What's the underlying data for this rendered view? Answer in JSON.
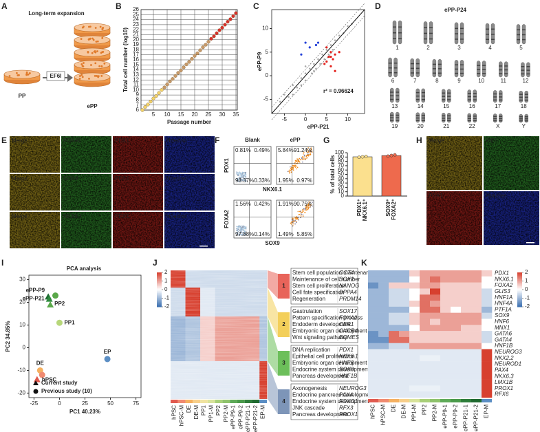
{
  "letters": [
    "A",
    "B",
    "C",
    "D",
    "E",
    "F",
    "G",
    "H",
    "I",
    "J",
    "K"
  ],
  "a": {
    "title": "Long-term expansion",
    "left": "PP",
    "arrow": "EF6I",
    "right": "ePP"
  },
  "b": {
    "type": "line",
    "xlabel": "Passage number",
    "ylabel": "Total cell number (log10)",
    "xlim": [
      0.5,
      35.5
    ],
    "ylim": [
      6,
      26
    ],
    "xticks": [
      5,
      10,
      15,
      20,
      25,
      30,
      35
    ],
    "yticks": [
      6,
      7,
      8,
      9,
      10,
      11,
      12,
      13,
      14,
      15,
      16,
      17,
      18,
      19,
      20,
      21,
      22,
      23,
      24,
      25,
      26
    ],
    "grid": true,
    "series": [
      {
        "color": "#f3d46a",
        "x": [
          1,
          2,
          3,
          4,
          5,
          6,
          7,
          8
        ],
        "values": [
          6.0,
          6.6,
          7.1,
          7.7,
          8.3,
          8.8,
          9.4,
          10.0
        ]
      },
      {
        "color": "#c89a6a",
        "x": [
          9,
          10,
          11,
          12,
          13,
          14,
          15,
          16,
          17,
          18,
          19,
          20,
          21,
          22,
          23,
          24,
          25
        ],
        "values": [
          10.5,
          11.1,
          11.7,
          12.2,
          12.8,
          13.4,
          13.9,
          14.5,
          15.1,
          15.6,
          16.2,
          16.8,
          17.3,
          17.9,
          18.5,
          19.0,
          19.6
        ]
      },
      {
        "color": "#d9302a",
        "x": [
          26,
          27,
          28,
          29,
          30,
          31,
          32,
          33,
          34,
          35
        ],
        "values": [
          20.2,
          20.7,
          21.3,
          21.9,
          22.4,
          23.0,
          23.6,
          24.1,
          24.7,
          25.3
        ]
      }
    ]
  },
  "c": {
    "type": "scatter",
    "xlabel": "ePP-P21",
    "ylabel": "ePP-P9",
    "annotation": "r² = 0.96624",
    "xlim": [
      -8,
      14
    ],
    "ylim": [
      -8,
      14
    ],
    "xticks": [
      -5,
      0,
      5,
      10
    ],
    "yticks": [
      -5,
      0,
      5,
      10
    ],
    "series": [
      {
        "color": "#a9a9a9",
        "x": [
          -6,
          -5,
          -4,
          -3,
          -2,
          -1,
          0,
          0,
          1,
          1.5,
          2,
          2.5,
          3,
          3.5,
          4,
          4.5,
          5,
          5.5,
          6,
          6.5,
          7,
          -3,
          -1,
          2,
          0,
          8,
          9,
          10,
          11
        ],
        "values": [
          -5.5,
          -4,
          -4.5,
          -2,
          -2.5,
          -0.5,
          0.5,
          -1,
          1.5,
          0.5,
          2.5,
          1.5,
          3.5,
          2.5,
          4.5,
          3.5,
          5.5,
          4.5,
          6.5,
          5.5,
          7.5,
          -4,
          -2,
          1,
          2,
          8.5,
          9,
          10.5,
          11
        ]
      },
      {
        "color": "#e3211c",
        "x": [
          5,
          5.5,
          6,
          6.5,
          7,
          5,
          6,
          8,
          7,
          4.5,
          6
        ],
        "values": [
          3,
          4,
          2,
          3.5,
          4.5,
          6,
          5,
          5,
          1,
          2.5,
          4
        ]
      },
      {
        "color": "#2340d8",
        "x": [
          1,
          0,
          2.5,
          -1,
          3
        ],
        "values": [
          6,
          7,
          6.5,
          4.5,
          7
        ]
      }
    ]
  },
  "d": {
    "title": "ePP-P24",
    "rows": [
      [
        "1",
        "2",
        "3",
        "4",
        "5"
      ],
      [
        "6",
        "7",
        "8",
        "9",
        "10",
        "11",
        "12"
      ],
      [
        "13",
        "14",
        "15",
        "16",
        "17",
        "18"
      ],
      [
        "19",
        "20",
        "21",
        "22",
        "X",
        "Y"
      ]
    ]
  },
  "e": {
    "rows": [
      [
        "Merge",
        "FOXA2",
        "PDX1",
        "Hoechst"
      ],
      [
        "Merge",
        "SOX9",
        "PDX1",
        "Hoechst"
      ],
      [
        "Merge",
        "NKX6.1",
        "PDX1",
        "Hoechst"
      ]
    ]
  },
  "f": {
    "columns": [
      "Blank",
      "ePP"
    ],
    "rows": [
      {
        "y": "PDX1",
        "x": "NKX6.1",
        "blank": [
          "0.81%",
          "0.49%",
          "98.37%",
          "0.33%"
        ],
        "epp": [
          "5.84%",
          "91.24%",
          "1.95%",
          "0.97%"
        ]
      },
      {
        "y": "FOXA2",
        "x": "SOX9",
        "blank": [
          "1.56%",
          "0.42%",
          "97.88%",
          "0.14%"
        ],
        "epp": [
          "1.91%",
          "90.75%",
          "1.49%",
          "5.85%"
        ]
      }
    ]
  },
  "g": {
    "type": "bar",
    "ylabel": "% of total cells",
    "ylim": [
      0,
      100
    ],
    "yticks": [
      0,
      10,
      20,
      30,
      40,
      50,
      60,
      70,
      80,
      90,
      100
    ],
    "categories": [
      [
        "PDX1⁺",
        "NKX6.1⁺"
      ],
      [
        "SOX9⁺",
        "FOXA2⁺"
      ]
    ],
    "values": [
      90.5,
      93.5
    ],
    "points": [
      [
        89.5,
        90.5,
        91.5
      ],
      [
        92,
        93.5,
        95
      ]
    ],
    "colors": [
      "#fbe08e",
      "#ee6a4d"
    ]
  },
  "h": {
    "labels": [
      "Merge",
      "Ki67",
      "PDX1",
      "Hoechst"
    ]
  },
  "i": {
    "type": "scatter",
    "title": "PCA analysis",
    "xlabel": "PC1  40.23%",
    "ylabel": "PC2  34.85%",
    "xlim": [
      -30,
      80
    ],
    "ylim": [
      -22,
      32
    ],
    "xticks": [
      -25,
      0,
      25,
      50,
      75
    ],
    "yticks": [
      -20,
      -10,
      0,
      10,
      20,
      30
    ],
    "points": [
      {
        "name": "ePP-P9",
        "x": -11,
        "y": 22.5,
        "shape": "triangle",
        "color": "#1e6e34"
      },
      {
        "name": "ePP-P21",
        "x": -10,
        "y": 21.5,
        "shape": "triangle",
        "color": "#2f8a3e"
      },
      {
        "name": "PP2",
        "x": -9,
        "y": 19,
        "shape": "triangle",
        "color": "#5aa84a"
      },
      {
        "name": null,
        "x": -4,
        "y": 23,
        "shape": "circle",
        "color": "#5aa84a"
      },
      {
        "name": "PP1",
        "x": 0,
        "y": 11,
        "shape": "circle",
        "color": "#b7d77a"
      },
      {
        "name": "EP",
        "x": 47,
        "y": -5,
        "shape": "circle",
        "color": "#5b8ec4"
      },
      {
        "name": "DE",
        "x": -19,
        "y": -10,
        "shape": "circle",
        "color": "#f5b060"
      },
      {
        "name": null,
        "x": -17,
        "y": -12,
        "shape": "circle",
        "color": "#f08a70"
      },
      {
        "name": "hPSC",
        "x": -22,
        "y": -14,
        "shape": "triangle",
        "color": "#e05a4f"
      }
    ],
    "legend": [
      "Current study",
      "Previous study (10)"
    ]
  },
  "j": {
    "type": "heatmap",
    "lim": [
      -2,
      2
    ],
    "colors": [
      "#3a6fb0",
      "#ffffff",
      "#d7402f"
    ],
    "colorbar_ticks": [
      2,
      1,
      0,
      -1,
      -2
    ],
    "columns": [
      "hPSC",
      "hPSC-M",
      "DE",
      "DE-M",
      "PP1",
      "PP1-M",
      "PP2",
      "PP2-M",
      "ePP-P9-1",
      "ePP-P9-2",
      "ePP-P21-1",
      "ePP-P21-2",
      "EP-M"
    ],
    "column_colors": [
      "#e05a4f",
      "#f08a70",
      "#f5b060",
      "#f8cf8a",
      "#f0e3a0",
      "#d8e39a",
      "#a8cf78",
      "#8ec26b",
      "#5eaa58",
      "#4a9a4a",
      "#2e7d3a",
      "#206a30",
      "#5b8ec4"
    ],
    "clusters": [
      {
        "number": "1",
        "color": "#e8645a",
        "terms": [
          "Stem cell population maintenance",
          "Maintenance of cell number",
          "Stem cell proliferation",
          "Cell fate specification",
          "Regeneration"
        ],
        "genes": [
          "OCT4",
          "SOX2",
          "NANOG",
          "DPPA4",
          "PRDM14"
        ],
        "values": [
          2,
          2,
          -0.5,
          -0.5,
          -0.5,
          -0.5,
          -0.5,
          -0.5,
          -0.5,
          -0.5,
          -0.5,
          -0.5,
          -0.5
        ]
      },
      {
        "number": "2",
        "color": "#f3cf5a",
        "terms": [
          "Gastrulation",
          "Pattern specification process",
          "Endoderm development",
          "Embryonic organ development",
          "Wnt signaling pathway"
        ],
        "genes": [
          "SOX17",
          "FOXA2",
          "CER1",
          "CXCR4",
          "EOMES"
        ],
        "values": [
          -0.5,
          -0.5,
          2,
          2,
          -0.3,
          -0.3,
          -0.5,
          -0.5,
          -0.5,
          -0.5,
          -0.5,
          -0.5,
          -0.5
        ]
      },
      {
        "number": "3",
        "color": "#6cbf5a",
        "terms": [
          "DNA replication",
          "Epithelial cell proliferation",
          "Embryonic organ development",
          "Endocrine system development",
          "Pancreas development"
        ],
        "genes": [
          "PDX1",
          "NKX6.1",
          "HNF6",
          "SOX9",
          "HNF1B"
        ],
        "values": [
          -1,
          -1,
          -0.8,
          -0.8,
          0.5,
          0.5,
          1,
          1,
          1,
          1,
          1,
          1,
          -0.8
        ]
      },
      {
        "number": "4",
        "color": "#7d95b8",
        "terms": [
          "Axonogenesis",
          "Endocrine pancreas development",
          "Endocrine system development",
          "JNK cascade",
          "Pancreas development"
        ],
        "genes": [
          "NEUROG3",
          "PAX4",
          "FOXO1",
          "RFX3",
          "PROX1"
        ],
        "values": [
          -0.3,
          -0.3,
          -0.3,
          -0.3,
          -0.3,
          -0.3,
          -0.3,
          -0.3,
          -0.3,
          -0.3,
          -0.3,
          -0.3,
          2
        ]
      }
    ]
  },
  "k": {
    "type": "heatmap",
    "lim": [
      -2,
      2
    ],
    "colors": [
      "#3a6fb0",
      "#ffffff",
      "#d7402f"
    ],
    "colorbar_ticks": [
      2,
      1,
      0,
      -1,
      -2
    ],
    "columns": [
      "hPSC",
      "hPSC-M",
      "DE",
      "DE-M",
      "PP1-M",
      "PP2",
      "PP2-M",
      "ePP-P9-1",
      "ePP-P9-2",
      "ePP-P21-1",
      "ePP-P21-2",
      "EP-M"
    ],
    "column_colors": [
      "#e05a4f",
      "#f08a70",
      "#f5b060",
      "#f8cf8a",
      "#d8e39a",
      "#a8cf78",
      "#8ec26b",
      "#5eaa58",
      "#4a9a4a",
      "#2e7d3a",
      "#206a30",
      "#5b8ec4"
    ],
    "genes": [
      "PDX1",
      "NKX6.1",
      "FOXA2",
      "GLIS3",
      "HNF1A",
      "HNF4A",
      "PTF1A",
      "SOX9",
      "HNF6",
      "MNX1",
      "GATA6",
      "GATA4",
      "HNF1B",
      "NEUROG3",
      "NKX2.2",
      "NEUROD1",
      "PAX4",
      "NKX6.3",
      "LMX1B",
      "PROX1",
      "RFX6"
    ],
    "values": [
      [
        -1,
        -1,
        -1,
        -1,
        0.5,
        1,
        1,
        1,
        1,
        1,
        1,
        0.5
      ],
      [
        -1,
        -1,
        -1,
        -1,
        0,
        1,
        1.5,
        1,
        1,
        1,
        1,
        0
      ],
      [
        -1.5,
        -1,
        0.5,
        0.5,
        0.5,
        1,
        1,
        0.5,
        0.5,
        0.5,
        0.5,
        0
      ],
      [
        -1,
        -1,
        -0.5,
        -0.5,
        0,
        0.5,
        2,
        0.5,
        0.5,
        0.5,
        0.5,
        -0.5
      ],
      [
        -1,
        -1,
        -0.5,
        -0.5,
        0,
        1.5,
        1.5,
        0.5,
        0.5,
        0.5,
        0.5,
        -0.5
      ],
      [
        -1,
        -1,
        -0.5,
        -0.5,
        0.5,
        1.5,
        1,
        0.5,
        0.5,
        0.5,
        0.5,
        -0.5
      ],
      [
        -1,
        -1,
        -1,
        -1,
        0,
        1.5,
        1.5,
        0.5,
        0,
        0.5,
        0.5,
        -1
      ],
      [
        -1,
        -1,
        -0.5,
        -0.5,
        0.5,
        1,
        1,
        1,
        1,
        1,
        1,
        -0.5
      ],
      [
        -1,
        -1,
        -0.5,
        -0.5,
        0.5,
        1,
        0.5,
        1,
        1,
        1,
        1,
        0
      ],
      [
        -1,
        -1,
        -1,
        -1,
        0,
        1,
        1,
        1,
        1,
        0.5,
        0.5,
        0
      ],
      [
        -1.5,
        -1,
        1.5,
        1,
        0.5,
        0.5,
        0.5,
        0.5,
        0.5,
        0.5,
        0.5,
        -0.5
      ],
      [
        -1.5,
        -1.5,
        1.5,
        1.5,
        0.5,
        0.5,
        0.5,
        0.5,
        0.5,
        0.5,
        0.5,
        -0.5
      ],
      [
        -1,
        -1,
        -0.5,
        -0.5,
        1,
        1,
        1,
        1,
        1,
        1,
        1,
        0
      ],
      [
        -0.3,
        -0.3,
        -0.3,
        -0.3,
        -0.3,
        -0.3,
        -0.3,
        -0.3,
        -0.3,
        -0.3,
        -0.3,
        2
      ],
      [
        -0.3,
        -0.3,
        -0.3,
        -0.3,
        -0.3,
        -0.2,
        -0.2,
        -0.3,
        -0.3,
        -0.3,
        -0.3,
        2
      ],
      [
        -0.3,
        -0.3,
        -0.3,
        -0.3,
        -0.3,
        -0.3,
        -0.3,
        -0.3,
        -0.3,
        -0.3,
        -0.3,
        2
      ],
      [
        -0.3,
        -0.3,
        -0.3,
        -0.3,
        -0.3,
        -0.3,
        -0.3,
        -0.3,
        -0.3,
        -0.3,
        -0.3,
        2
      ],
      [
        -0.3,
        -0.3,
        -0.3,
        -0.3,
        -0.3,
        -0.3,
        -0.3,
        -0.3,
        -0.3,
        -0.3,
        -0.3,
        2
      ],
      [
        -0.3,
        -0.3,
        -0.3,
        -0.3,
        -0.3,
        -0.3,
        -0.3,
        -0.3,
        -0.3,
        -0.3,
        -0.3,
        2
      ],
      [
        -0.3,
        -0.3,
        -0.3,
        -0.3,
        -0.2,
        -0.2,
        -0.2,
        -0.3,
        -0.3,
        -0.3,
        -0.3,
        2
      ],
      [
        -0.3,
        -0.3,
        -0.3,
        -0.3,
        -0.3,
        -0.3,
        -0.3,
        -0.3,
        -0.3,
        -0.3,
        -0.3,
        2
      ]
    ]
  }
}
